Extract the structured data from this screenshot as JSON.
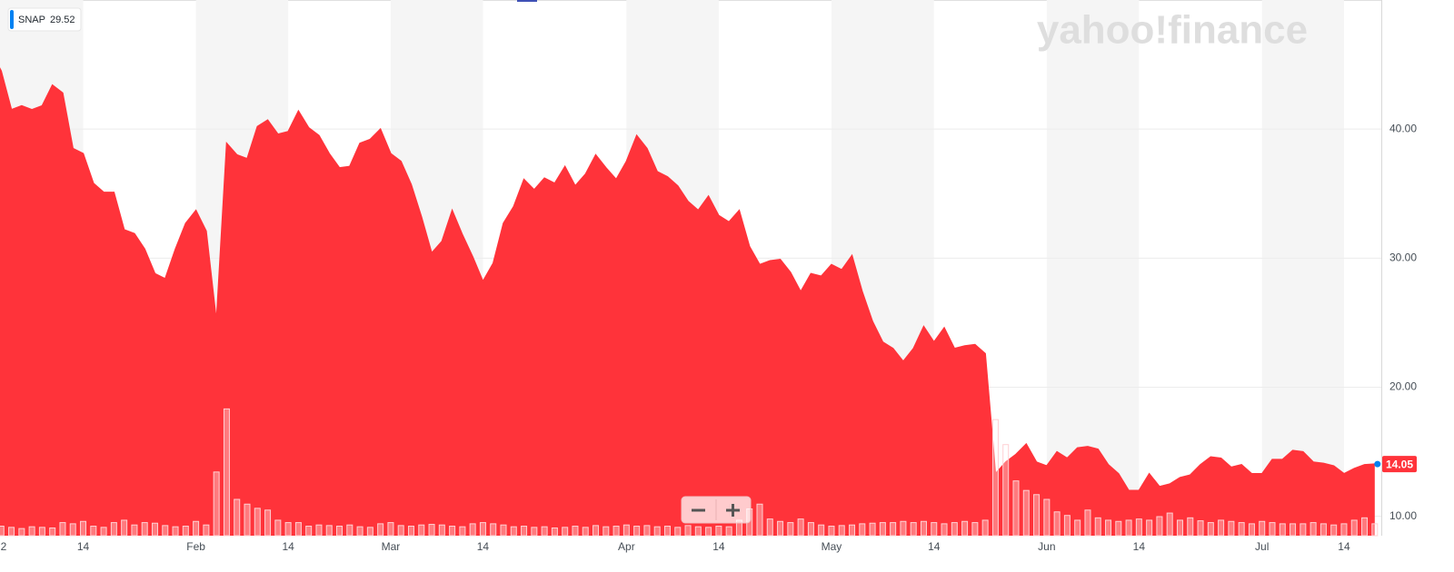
{
  "chart_data": {
    "type": "area",
    "watermark": "yahoo!finance",
    "tooltip_value": 29.52,
    "categories": [
      "2",
      null,
      null,
      null,
      null,
      null,
      null,
      null,
      null,
      "14",
      null,
      null,
      null,
      null,
      null,
      null,
      null,
      null,
      null,
      null,
      "Feb",
      null,
      null,
      null,
      null,
      null,
      null,
      null,
      null,
      "14",
      null,
      null,
      null,
      null,
      null,
      null,
      null,
      null,
      null,
      "Mar",
      null,
      null,
      null,
      null,
      null,
      null,
      null,
      null,
      "14",
      null,
      null,
      null,
      null,
      null,
      null,
      null,
      null,
      null,
      null,
      null,
      null,
      null,
      "Apr",
      null,
      null,
      null,
      null,
      null,
      null,
      null,
      null,
      "14",
      null,
      null,
      null,
      null,
      null,
      null,
      null,
      null,
      null,
      null,
      "May",
      null,
      null,
      null,
      null,
      null,
      null,
      null,
      null,
      null,
      "14",
      null,
      null,
      null,
      null,
      null,
      null,
      null,
      null,
      null,
      null,
      "Jun",
      null,
      null,
      null,
      null,
      null,
      null,
      null,
      null,
      "14",
      null,
      null,
      null,
      null,
      null,
      null,
      null,
      null,
      null,
      null,
      null,
      "Jul",
      null,
      null,
      null,
      null,
      null,
      null,
      null,
      "14",
      null,
      null,
      null
    ],
    "series": [
      {
        "name": "SNAP",
        "color": "#ff333a",
        "values": [
          46.0,
          44.5,
          41.5,
          41.8,
          41.5,
          41.8,
          43.4,
          42.8,
          38.5,
          38.1,
          35.8,
          35.1,
          35.1,
          32.2,
          31.9,
          30.7,
          28.8,
          28.4,
          30.7,
          32.7,
          33.7,
          32.1,
          25.1,
          38.9,
          38.0,
          37.7,
          40.2,
          40.7,
          39.6,
          39.8,
          41.4,
          40.1,
          39.5,
          38.1,
          37.0,
          37.1,
          38.9,
          39.2,
          40.0,
          38.1,
          37.5,
          35.7,
          33.2,
          30.4,
          31.3,
          33.7,
          31.8,
          30.1,
          28.2,
          29.6,
          32.7,
          34.0,
          36.1,
          35.3,
          36.2,
          35.8,
          37.1,
          35.6,
          36.5,
          38.0,
          37.0,
          36.1,
          37.5,
          39.5,
          38.5,
          36.7,
          36.3,
          35.6,
          34.4,
          33.7,
          34.8,
          33.3,
          32.8,
          33.7,
          30.9,
          29.5,
          29.8,
          29.9,
          28.9,
          27.4,
          28.8,
          28.6,
          29.5,
          29.1,
          30.2,
          27.4,
          25.1,
          23.5,
          23.0,
          22.0,
          23.0,
          24.7,
          23.5,
          24.6,
          23.0,
          23.2,
          23.3,
          22.6,
          13.3,
          14.2,
          14.8,
          15.6,
          14.2,
          13.9,
          15.0,
          14.5,
          15.3,
          15.4,
          15.2,
          14.0,
          13.3,
          12.0,
          12.0,
          13.3,
          12.3,
          12.5,
          13.0,
          13.2,
          14.0,
          14.6,
          14.5,
          13.8,
          14.0,
          13.3,
          13.3,
          14.4,
          14.4,
          15.1,
          15.0,
          14.2,
          14.1,
          13.9,
          13.3,
          13.7,
          14.0,
          14.05
        ]
      },
      {
        "name": "Volume",
        "color": "#ffd0d3",
        "axis": "y2",
        "values": [
          20,
          16,
          14,
          12,
          15,
          14,
          13,
          22,
          20,
          24,
          16,
          14,
          22,
          26,
          18,
          22,
          21,
          17,
          15,
          16,
          24,
          18,
          107,
          213,
          61,
          53,
          46,
          43,
          26,
          22,
          22,
          16,
          18,
          17,
          16,
          18,
          15,
          14,
          20,
          22,
          17,
          16,
          18,
          19,
          18,
          16,
          15,
          20,
          22,
          20,
          18,
          15,
          16,
          14,
          15,
          13,
          14,
          16,
          14,
          17,
          15,
          16,
          18,
          16,
          17,
          15,
          16,
          14,
          17,
          15,
          14,
          16,
          15,
          26,
          45,
          53,
          28,
          24,
          22,
          28,
          22,
          18,
          16,
          17,
          18,
          20,
          21,
          22,
          22,
          24,
          22,
          24,
          22,
          20,
          22,
          24,
          22,
          26,
          195,
          153,
          92,
          76,
          69,
          61,
          40,
          34,
          26,
          43,
          30,
          26,
          24,
          26,
          28,
          26,
          32,
          38,
          26,
          30,
          25,
          22,
          26,
          24,
          22,
          20,
          24,
          22,
          20,
          20,
          20,
          22,
          20,
          18,
          20,
          26,
          30,
          20
        ]
      }
    ],
    "ylim": [
      8.5,
      50
    ],
    "yticks": [
      {
        "value": 10,
        "label": "10.00"
      },
      {
        "value": 20,
        "label": "20.00"
      },
      {
        "value": 30,
        "label": "30.00"
      },
      {
        "value": 40,
        "label": "40.00"
      }
    ],
    "y2lim": [
      0,
      900
    ],
    "grid": true
  }
}
